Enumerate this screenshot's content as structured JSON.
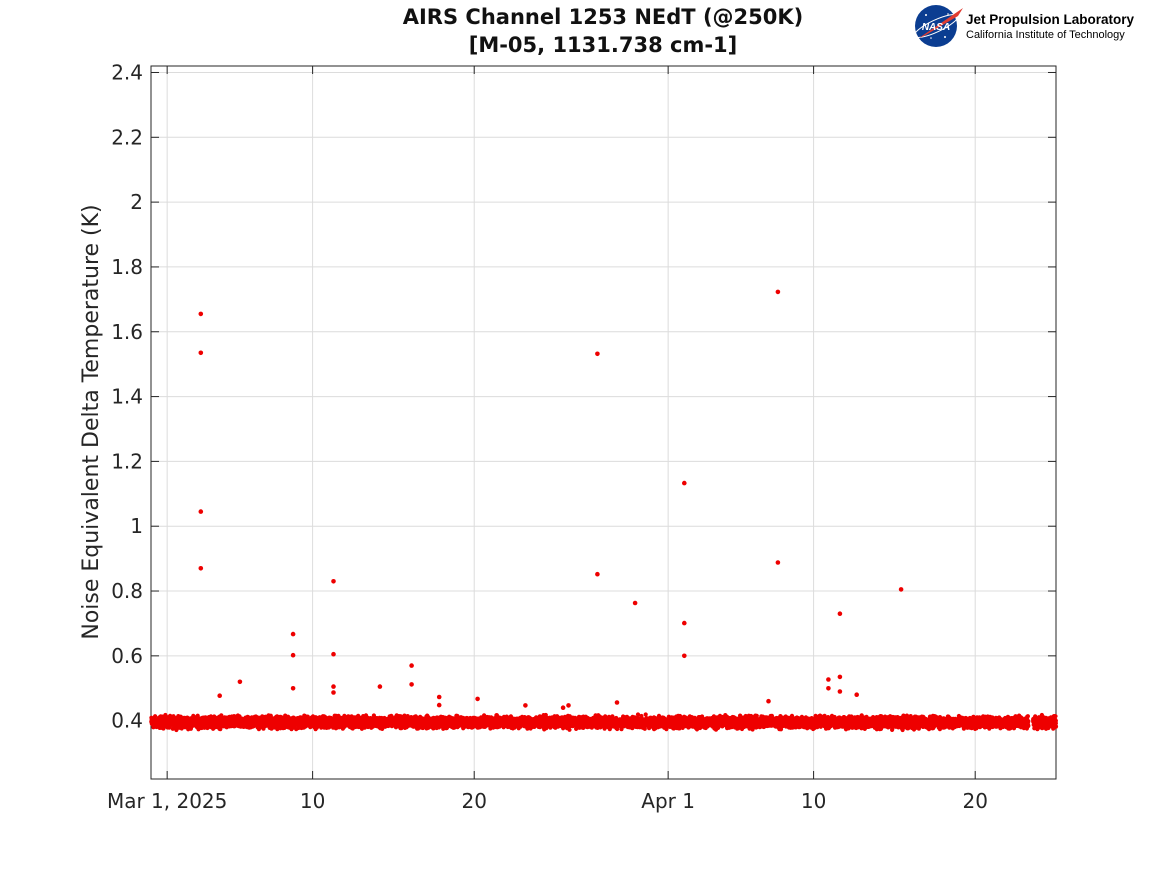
{
  "logo": {
    "emblem": "NASA",
    "line1": "Jet Propulsion Laboratory",
    "line2": "California Institute of Technology"
  },
  "colors": {
    "marker": "#ee0000",
    "grid": "#dcdcdc",
    "axis": "#262626"
  },
  "chart_data": {
    "type": "scatter",
    "title": [
      "AIRS Channel 1253 NEdT (@250K)",
      "[M-05, 1131.738 cm-1]"
    ],
    "xlabel": "",
    "ylabel": "Noise Equivalent Delta Temperature (K)",
    "x_is_date": true,
    "xlim": [
      "2025-02-28T00:00",
      "2025-04-25T00:00"
    ],
    "ylim": [
      0.22,
      2.42
    ],
    "x_ticks": [
      {
        "date": "2025-03-01",
        "label": "Mar 1, 2025"
      },
      {
        "date": "2025-03-10",
        "label": "10"
      },
      {
        "date": "2025-03-20",
        "label": "20"
      },
      {
        "date": "2025-04-01",
        "label": "Apr 1"
      },
      {
        "date": "2025-04-10",
        "label": "10"
      },
      {
        "date": "2025-04-20",
        "label": "20"
      }
    ],
    "y_ticks": [
      0.4,
      0.6,
      0.8,
      1,
      1.2,
      1.4,
      1.6,
      1.8,
      2,
      2.2,
      2.4
    ],
    "grid": true,
    "data_gaps": [
      [
        "2025-04-23T07:00",
        "2025-04-23T14:00"
      ]
    ],
    "baseline_band": {
      "x_range": [
        "2025-02-28T00:00",
        "2025-04-25T00:00"
      ],
      "y_center": 0.395,
      "y_spread": 0.025,
      "description": "dense band of points near 0.4 K"
    },
    "series": [
      {
        "points": [
          [
            "2025-03-03T02:00",
            1.655
          ],
          [
            "2025-03-03T02:00",
            1.535
          ],
          [
            "2025-03-03T02:00",
            1.045
          ],
          [
            "2025-03-03T02:00",
            0.87
          ],
          [
            "2025-03-04T06:00",
            0.477
          ],
          [
            "2025-03-05T12:00",
            0.52
          ],
          [
            "2025-03-08T19:00",
            0.667
          ],
          [
            "2025-03-08T19:00",
            0.602
          ],
          [
            "2025-03-08T19:00",
            0.5
          ],
          [
            "2025-03-11T07:00",
            0.83
          ],
          [
            "2025-03-11T07:00",
            0.605
          ],
          [
            "2025-03-11T07:00",
            0.505
          ],
          [
            "2025-03-11T07:00",
            0.487
          ],
          [
            "2025-03-14T04:00",
            0.505
          ],
          [
            "2025-03-16T03:00",
            0.57
          ],
          [
            "2025-03-16T03:00",
            0.512
          ],
          [
            "2025-03-17T20:00",
            0.473
          ],
          [
            "2025-03-17T20:00",
            0.448
          ],
          [
            "2025-03-20T05:00",
            0.467
          ],
          [
            "2025-03-27T15:00",
            1.532
          ],
          [
            "2025-03-27T15:00",
            0.852
          ],
          [
            "2025-03-29T23:00",
            0.763
          ],
          [
            "2025-03-28T20:00",
            0.456
          ],
          [
            "2025-04-02T00:00",
            1.133
          ],
          [
            "2025-04-02T00:00",
            0.701
          ],
          [
            "2025-04-02T00:00",
            0.6
          ],
          [
            "2025-04-07T05:00",
            0.46
          ],
          [
            "2025-04-07T19:00",
            1.723
          ],
          [
            "2025-04-07T19:00",
            0.888
          ],
          [
            "2025-04-10T22:00",
            0.527
          ],
          [
            "2025-04-10T22:00",
            0.5
          ],
          [
            "2025-04-11T15:00",
            0.73
          ],
          [
            "2025-04-11T15:00",
            0.535
          ],
          [
            "2025-04-11T15:00",
            0.49
          ],
          [
            "2025-04-12T16:00",
            0.48
          ],
          [
            "2025-04-15T10:00",
            0.805
          ],
          [
            "2025-03-23T04:00",
            0.447
          ],
          [
            "2025-03-25T20:00",
            0.447
          ],
          [
            "2025-03-25T12:00",
            0.44
          ]
        ]
      }
    ]
  }
}
